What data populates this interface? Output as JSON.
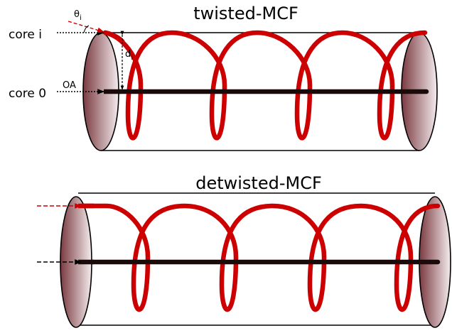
{
  "colors": {
    "helix": "#cc0000",
    "axis": "#1a0a0a",
    "arrow_red": "#cc0000",
    "arrow_black": "#000000",
    "end_cap_dark": "#7a3a40",
    "end_cap_light": "#f2e8ea"
  },
  "top_diagram": {
    "title": "twisted-MCF",
    "core_i_label": "core i",
    "core_0_label": "core 0",
    "oa_label": "OA",
    "theta_label": "θ",
    "theta_sub": "i",
    "d_label": "d",
    "d_sub": "i"
  },
  "bottom_diagram": {
    "title": "detwisted-MCF"
  }
}
